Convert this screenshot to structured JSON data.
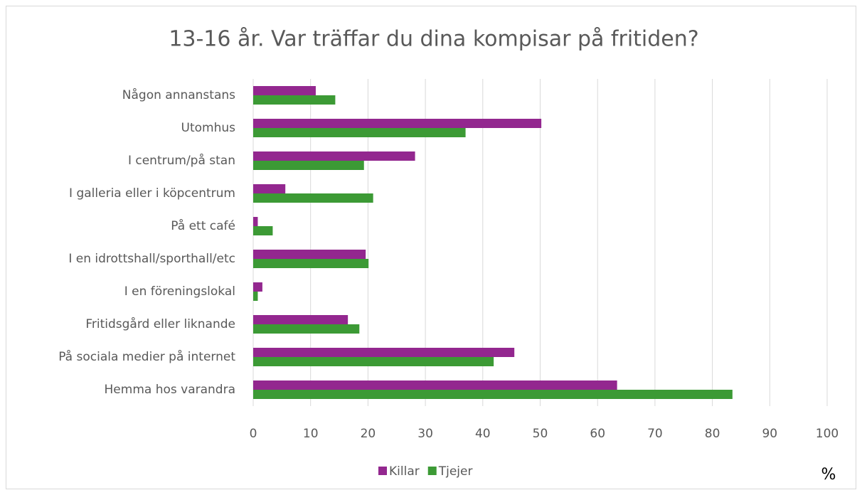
{
  "chart_data": {
    "type": "hbar",
    "title": "13-16 år. Var träffar du dina kompisar på fritiden?",
    "xlabel": "%",
    "categories": [
      "Någon annanstans",
      "Utomhus",
      "I centrum/på stan",
      "I galleria eller i köpcentrum",
      "På ett café",
      "I en idrottshall/sporthall/etc",
      "I en föreningslokal",
      "Fritidsgård eller liknande",
      "På sociala medier på internet",
      "Hemma hos varandra"
    ],
    "series": [
      {
        "name": "Killar",
        "color": "#93278f",
        "values": [
          10.9,
          50.2,
          28.2,
          5.6,
          0.8,
          19.6,
          1.6,
          16.5,
          45.5,
          63.4
        ]
      },
      {
        "name": "Tjejer",
        "color": "#3c9a35",
        "values": [
          14.3,
          37,
          19.3,
          20.9,
          3.4,
          20.1,
          0.8,
          18.5,
          41.9,
          83.5
        ]
      }
    ],
    "xlim": [
      0,
      100
    ],
    "xticks": [
      0,
      10,
      20,
      30,
      40,
      50,
      60,
      70,
      80,
      90,
      100
    ],
    "grid": true,
    "legend": "bottom"
  }
}
